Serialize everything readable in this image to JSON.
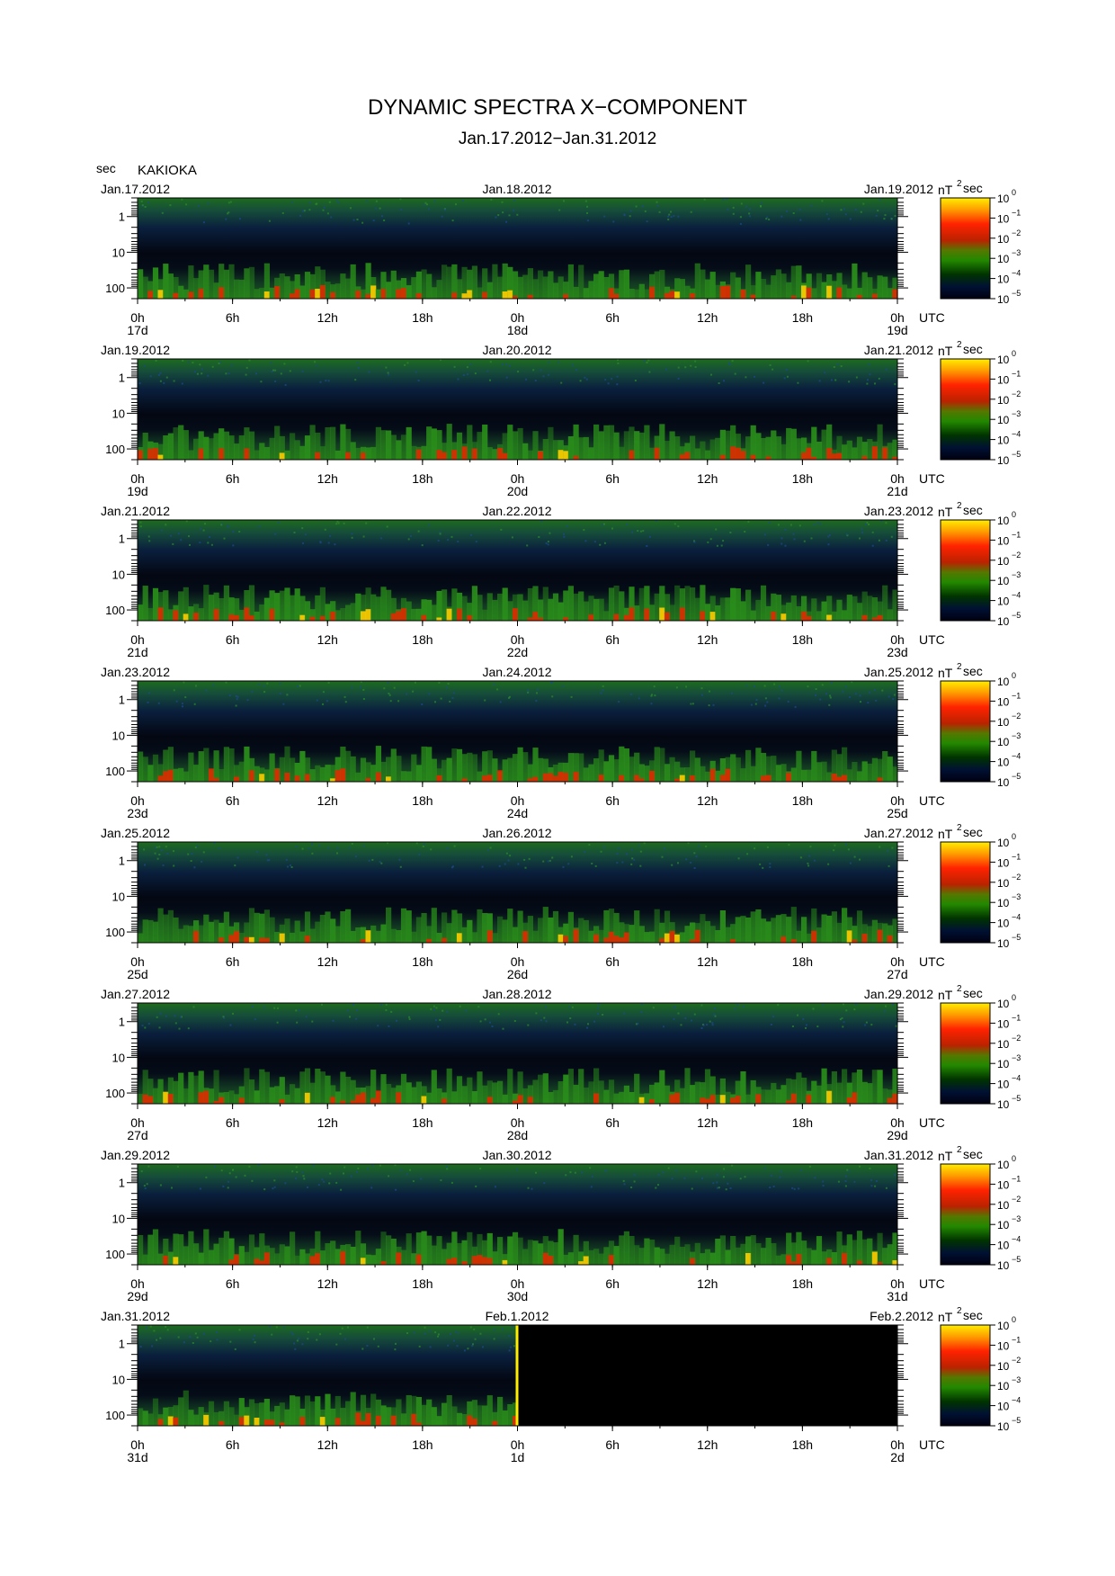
{
  "title": "DYNAMIC SPECTRA X−COMPONENT",
  "subtitle": "Jan.17.2012−Jan.31.2012",
  "period_unit": "sec",
  "station": "KAKIOKA",
  "utc_label": "UTC",
  "power_unit": "nT",
  "power_unit_exp": "2",
  "power_unit_suffix": "sec",
  "chart_data": {
    "type": "heatmap",
    "y_axis": {
      "label": "sec",
      "scale": "log",
      "ticks": [
        1,
        10,
        100
      ],
      "tick_labels": [
        "1",
        "10",
        "100"
      ]
    },
    "x_ticks": [
      "0h",
      "6h",
      "12h",
      "18h",
      "0h",
      "6h",
      "12h",
      "18h",
      "0h"
    ],
    "colorbar": {
      "ticks": [
        "10",
        "10",
        "10",
        "10",
        "10",
        "10"
      ],
      "exponents": [
        "0",
        "−1",
        "−2",
        "−3",
        "−4",
        "−5"
      ],
      "colors": [
        "#ffee00",
        "#ff9900",
        "#ff2200",
        "#cc2200",
        "#557700",
        "#228800",
        "#003300",
        "#001133",
        "#000010"
      ]
    },
    "panels": [
      {
        "left_date": "Jan.17.2012",
        "mid_date": "Jan.18.2012",
        "right_date": "Jan.19.2012",
        "day_labels": [
          "17d",
          "18d",
          "19d"
        ]
      },
      {
        "left_date": "Jan.19.2012",
        "mid_date": "Jan.20.2012",
        "right_date": "Jan.21.2012",
        "day_labels": [
          "19d",
          "20d",
          "21d"
        ]
      },
      {
        "left_date": "Jan.21.2012",
        "mid_date": "Jan.22.2012",
        "right_date": "Jan.23.2012",
        "day_labels": [
          "21d",
          "22d",
          "23d"
        ]
      },
      {
        "left_date": "Jan.23.2012",
        "mid_date": "Jan.24.2012",
        "right_date": "Jan.25.2012",
        "day_labels": [
          "23d",
          "24d",
          "25d"
        ]
      },
      {
        "left_date": "Jan.25.2012",
        "mid_date": "Jan.26.2012",
        "right_date": "Jan.27.2012",
        "day_labels": [
          "25d",
          "26d",
          "27d"
        ]
      },
      {
        "left_date": "Jan.27.2012",
        "mid_date": "Jan.28.2012",
        "right_date": "Jan.29.2012",
        "day_labels": [
          "27d",
          "28d",
          "29d"
        ]
      },
      {
        "left_date": "Jan.29.2012",
        "mid_date": "Jan.30.2012",
        "right_date": "Jan.31.2012",
        "day_labels": [
          "29d",
          "30d",
          "31d"
        ]
      },
      {
        "left_date": "Jan.31.2012",
        "mid_date": "Feb.1.2012",
        "right_date": "Feb.2.2012",
        "day_labels": [
          "31d",
          "1d",
          "2d"
        ]
      }
    ]
  }
}
